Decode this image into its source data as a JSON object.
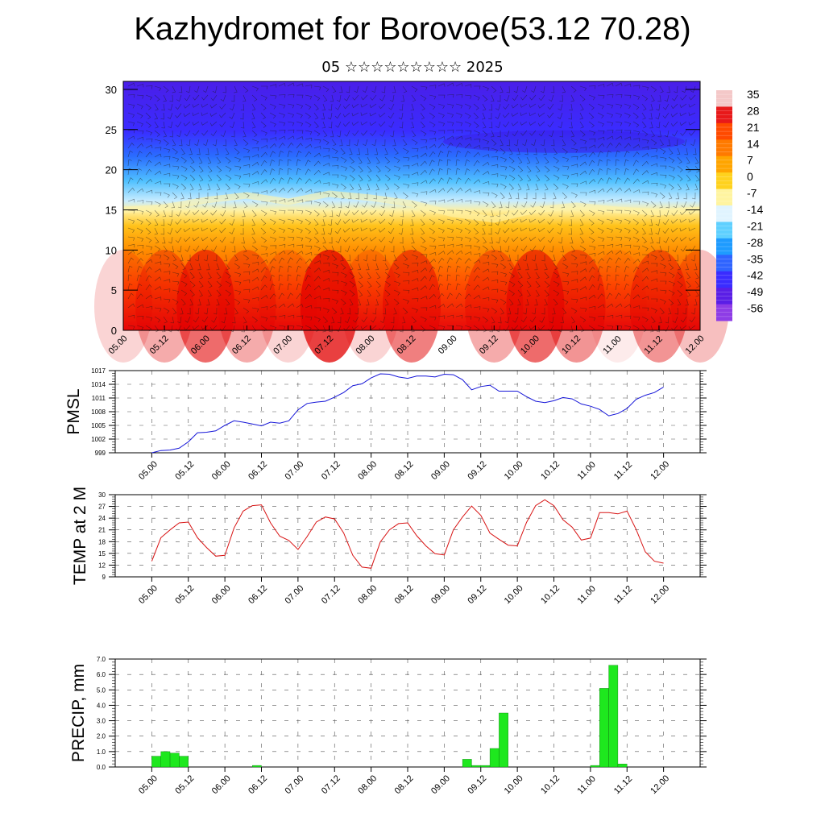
{
  "title": "Kazhydromet for Borovoe(53.12 70.28)",
  "subtitle": "05 ☆☆☆☆☆☆☆☆☆ 2025",
  "time_labels": [
    "05.00",
    "05.12",
    "06.00",
    "06.12",
    "07.00",
    "07.12",
    "08.00",
    "08.12",
    "09.00",
    "09.12",
    "10.00",
    "10.12",
    "11.00",
    "11.12",
    "12.00"
  ],
  "colorbar": {
    "labels": [
      "35",
      "28",
      "21",
      "14",
      "7",
      "0",
      "-7",
      "-14",
      "-21",
      "-28",
      "-35",
      "-42",
      "-49",
      "-56"
    ],
    "colors": [
      "#f4c8c8",
      "#e8191a",
      "#ff4a00",
      "#ff7a00",
      "#ffa500",
      "#ffd21e",
      "#fff4a0",
      "#e0f4ff",
      "#5fd0ff",
      "#1e9bff",
      "#2f64ff",
      "#3a2cff",
      "#5a1ee6",
      "#8e3ce6"
    ]
  },
  "chart_data": [
    {
      "type": "heatmap",
      "title": "Kazhydromet for Borovoe(53.12 70.28)",
      "subtitle": "05 ☆☆☆☆☆☆☆☆☆ 2025",
      "xlabel": "",
      "ylabel": "",
      "x": [
        "05.00",
        "05.12",
        "06.00",
        "06.12",
        "07.00",
        "07.12",
        "08.00",
        "08.12",
        "09.00",
        "09.12",
        "10.00",
        "10.12",
        "11.00",
        "11.12",
        "12.00"
      ],
      "yticks": [
        0,
        5,
        10,
        15,
        20,
        25,
        30
      ],
      "ylim": [
        0,
        31
      ],
      "colorbar_range": [
        -56,
        35
      ],
      "overlay": "wind barbs",
      "surface_temp_by_time": [
        26,
        28,
        31,
        28,
        26,
        33,
        26,
        30,
        24,
        28,
        31,
        29,
        25,
        29,
        27
      ],
      "freezing_level": [
        15,
        15.3,
        16.2,
        16.8,
        16,
        17,
        16.5,
        15.8,
        14.5,
        13.8,
        15,
        15.5,
        15,
        14.7,
        15
      ]
    },
    {
      "type": "line",
      "xlabel": "",
      "ylabel": "PMSL",
      "x": [
        "05.00",
        "05.03",
        "05.06",
        "05.09",
        "05.12",
        "05.15",
        "05.18",
        "05.21",
        "06.00",
        "06.03",
        "06.06",
        "06.09",
        "06.12",
        "06.15",
        "06.18",
        "06.21",
        "07.00",
        "07.03",
        "07.06",
        "07.09",
        "07.12",
        "07.15",
        "07.18",
        "07.21",
        "08.00",
        "08.03",
        "08.06",
        "08.09",
        "08.12",
        "08.15",
        "08.18",
        "08.21",
        "09.00",
        "09.03",
        "09.06",
        "09.09",
        "09.12",
        "09.15",
        "09.18",
        "09.21",
        "10.00",
        "10.03",
        "10.06",
        "10.09",
        "10.12",
        "10.15",
        "10.18",
        "10.21",
        "11.00",
        "11.03",
        "11.06",
        "11.09",
        "11.12",
        "11.15",
        "11.18",
        "11.21",
        "12.00"
      ],
      "series": [
        {
          "values": [
            999,
            999.5,
            999.6,
            1000,
            1001.4,
            1003.4,
            1003.5,
            1003.8,
            1005,
            1006,
            1005.7,
            1005.3,
            1004.9,
            1005.7,
            1005.5,
            1006,
            1008.4,
            1009.8,
            1010.1,
            1010.3,
            1011.2,
            1012.2,
            1013.7,
            1014.1,
            1015.4,
            1016.3,
            1016.2,
            1015.6,
            1015.3,
            1015.8,
            1015.8,
            1015.6,
            1016.2,
            1016.1,
            1015,
            1012.8,
            1013.5,
            1013.8,
            1012.5,
            1012.5,
            1012.5,
            1011.3,
            1010.3,
            1010,
            1010.4,
            1011.1,
            1010.8,
            1009.7,
            1009.2,
            1008.5,
            1007.1,
            1007.6,
            1008.7,
            1010.7,
            1011.6,
            1012.2,
            1013.4
          ]
        }
      ],
      "yticks": [
        999,
        1002,
        1005,
        1008,
        1011,
        1014,
        1017
      ],
      "ylim": [
        999,
        1017
      ]
    },
    {
      "type": "line",
      "xlabel": "",
      "ylabel": "TEMP at 2 M",
      "x": [
        "05.00",
        "05.03",
        "05.06",
        "05.09",
        "05.12",
        "05.15",
        "05.18",
        "05.21",
        "06.00",
        "06.03",
        "06.06",
        "06.09",
        "06.12",
        "06.15",
        "06.18",
        "06.21",
        "07.00",
        "07.03",
        "07.06",
        "07.09",
        "07.12",
        "07.15",
        "07.18",
        "07.21",
        "08.00",
        "08.03",
        "08.06",
        "08.09",
        "08.12",
        "08.15",
        "08.18",
        "08.21",
        "09.00",
        "09.03",
        "09.06",
        "09.09",
        "09.12",
        "09.15",
        "09.18",
        "09.21",
        "10.00",
        "10.03",
        "10.06",
        "10.09",
        "10.12",
        "10.15",
        "10.18",
        "10.21",
        "11.00",
        "11.03",
        "11.06",
        "11.09",
        "11.12",
        "11.15",
        "11.18",
        "11.21",
        "12.00"
      ],
      "series": [
        {
          "values": [
            13,
            19,
            21,
            22.8,
            23,
            19,
            16.5,
            14.3,
            14.5,
            21.5,
            25.8,
            27.2,
            27.4,
            22.8,
            19.4,
            18.3,
            16,
            19.3,
            23,
            24.3,
            23.8,
            20.2,
            14.5,
            11.5,
            11.2,
            17.9,
            21,
            22.6,
            22.8,
            19.5,
            16.9,
            14.9,
            14.6,
            21,
            24.3,
            27.1,
            24.7,
            20.2,
            18.6,
            17.1,
            16.9,
            22.9,
            27.2,
            28.7,
            27.2,
            23.6,
            21.7,
            18.4,
            18.9,
            25.4,
            25.4,
            25.1,
            25.8,
            21.1,
            15.4,
            13,
            12.5
          ]
        }
      ],
      "yticks": [
        9,
        12,
        15,
        18,
        21,
        24,
        27,
        30
      ],
      "ylim": [
        9,
        30
      ]
    },
    {
      "type": "bar",
      "xlabel": "",
      "ylabel": "PRECIP, mm",
      "x": [
        "05.03",
        "05.06",
        "05.09",
        "05.12",
        "06.12",
        "09.09",
        "09.12",
        "09.15",
        "09.18",
        "09.21",
        "11.03",
        "11.06",
        "11.09",
        "11.12"
      ],
      "values": [
        0.7,
        1.0,
        0.9,
        0.7,
        0.1,
        0.5,
        0.1,
        0.1,
        1.2,
        3.5,
        0.1,
        5.1,
        6.6,
        0.2
      ],
      "yticks": [
        "0.0",
        "1.0",
        "2.0",
        "3.0",
        "4.0",
        "5.0",
        "6.0",
        "7.0"
      ],
      "ylim": [
        0,
        7
      ]
    }
  ]
}
